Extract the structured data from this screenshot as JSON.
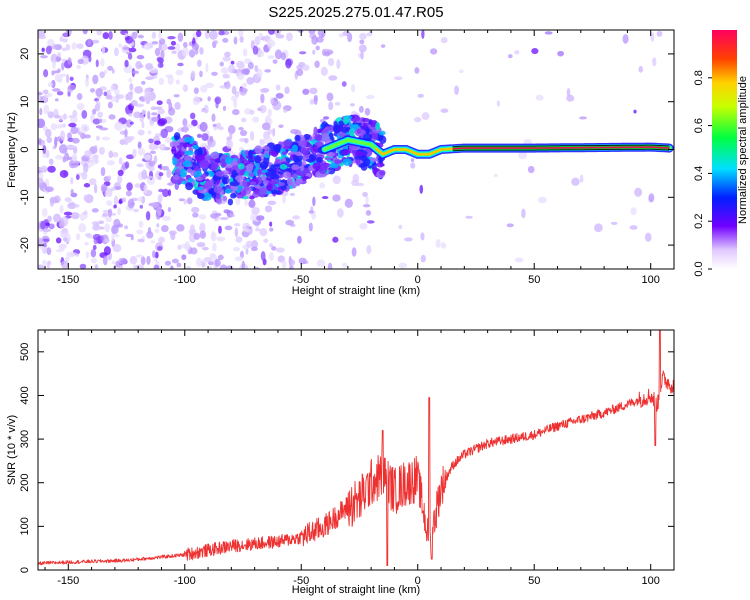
{
  "title": "S225.2025.275.01.47.R05",
  "colors": {
    "snr_line": "#ee3030",
    "track": "#e01050",
    "background": "#ffffff"
  },
  "chart_data": [
    {
      "type": "heatmap",
      "xlabel": "Height of straight line (km)",
      "ylabel": "Frequency (Hz)",
      "xlim": [
        -163,
        110
      ],
      "ylim": [
        -25,
        25
      ],
      "xticks": [
        -150,
        -100,
        -50,
        0,
        50,
        100
      ],
      "yticks": [
        -20,
        -10,
        0,
        10,
        20
      ],
      "colorbar": {
        "label": "Normalized spectral amplitude",
        "range": [
          0,
          1
        ],
        "ticks": [
          0.0,
          0.2,
          0.4,
          0.6,
          0.8
        ],
        "placement": "right"
      },
      "ridge": [
        {
          "x": -100,
          "y": -2
        },
        {
          "x": -90,
          "y": -6
        },
        {
          "x": -80,
          "y": -6
        },
        {
          "x": -70,
          "y": -5
        },
        {
          "x": -60,
          "y": -4
        },
        {
          "x": -50,
          "y": -2
        },
        {
          "x": -40,
          "y": 0
        },
        {
          "x": -30,
          "y": 2
        },
        {
          "x": -20,
          "y": 1
        },
        {
          "x": -15,
          "y": -1
        },
        {
          "x": -10,
          "y": 0
        },
        {
          "x": -5,
          "y": 0
        },
        {
          "x": 0,
          "y": -1
        },
        {
          "x": 5,
          "y": -1
        },
        {
          "x": 10,
          "y": 0
        },
        {
          "x": 20,
          "y": 0.3
        },
        {
          "x": 50,
          "y": 0.3
        },
        {
          "x": 100,
          "y": 0.5
        },
        {
          "x": 108,
          "y": 0.3
        }
      ]
    },
    {
      "type": "line",
      "xlabel": "Height of straight line (km)",
      "ylabel": "SNR (10 * v/v)",
      "xlim": [
        -163,
        110
      ],
      "ylim": [
        0,
        550
      ],
      "xticks": [
        -150,
        -100,
        -50,
        0,
        50,
        100
      ],
      "yticks": [
        0,
        100,
        200,
        300,
        400,
        500
      ],
      "series": [
        {
          "x": [
            -163,
            -150,
            -125,
            -100,
            -90,
            -80,
            -70,
            -60,
            -50,
            -40,
            -30,
            -25,
            -20,
            -15,
            -10,
            -5,
            0,
            5,
            10,
            15,
            20,
            30,
            40,
            50,
            60,
            70,
            80,
            90,
            95,
            100,
            103,
            105,
            110
          ],
          "y": [
            15,
            18,
            22,
            35,
            45,
            55,
            60,
            65,
            75,
            100,
            145,
            160,
            200,
            220,
            180,
            200,
            210,
            60,
            190,
            240,
            265,
            290,
            300,
            310,
            330,
            345,
            360,
            380,
            390,
            400,
            380,
            440,
            420
          ],
          "spikes": [
            {
              "x": -15,
              "y": 320
            },
            {
              "x": -13,
              "y": 10
            },
            {
              "x": 5,
              "y": 395
            },
            {
              "x": 6,
              "y": 25
            },
            {
              "x": 102,
              "y": 285
            },
            {
              "x": 104,
              "y": 550
            }
          ]
        }
      ]
    }
  ]
}
